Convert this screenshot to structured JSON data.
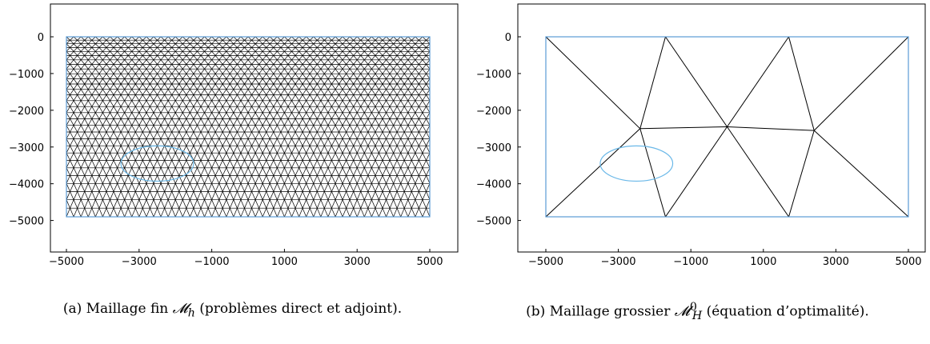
{
  "figure": {
    "panels": [
      {
        "id": "a",
        "caption_prefix": "(a) Maillage fin ",
        "caption_math": "𝓜",
        "caption_sub": "h",
        "caption_sup": "",
        "caption_suffix": " (problèmes direct et adjoint).",
        "x_ticks": [
          "-5000",
          "-3000",
          "-1000",
          "1000",
          "3000",
          "5000"
        ],
        "y_ticks": [
          "0",
          "-1000",
          "-2000",
          "-3000",
          "-4000",
          "-5000"
        ],
        "mesh": "fine"
      },
      {
        "id": "b",
        "caption_prefix": "(b) Maillage grossier ",
        "caption_math": "𝓜",
        "caption_sub": "H",
        "caption_sup": "0",
        "caption_suffix": " (équation d’optimalité).",
        "x_ticks": [
          "-5000",
          "-3000",
          "-1000",
          "1000",
          "3000",
          "5000"
        ],
        "y_ticks": [
          "0",
          "-1000",
          "-2000",
          "-3000",
          "-4000",
          "-5000"
        ],
        "mesh": "coarse"
      }
    ],
    "domain": {
      "xlim": [
        -5000,
        5000
      ],
      "ylim": [
        -4900,
        0
      ]
    },
    "inclusion": {
      "cx": -2500,
      "cy": -3450,
      "rx": 1000,
      "ry": 480
    },
    "coarse_nodes": [
      [
        -5000,
        0
      ],
      [
        -1700,
        0
      ],
      [
        1700,
        0
      ],
      [
        5000,
        0
      ],
      [
        -2400,
        -2500
      ],
      [
        0,
        -2450
      ],
      [
        2400,
        -2550
      ],
      [
        -5000,
        -4900
      ],
      [
        -1700,
        -4900
      ],
      [
        1700,
        -4900
      ],
      [
        5000,
        -4900
      ]
    ],
    "coarse_edges": [
      [
        0,
        4
      ],
      [
        1,
        4
      ],
      [
        1,
        5
      ],
      [
        2,
        5
      ],
      [
        2,
        6
      ],
      [
        3,
        6
      ],
      [
        4,
        5
      ],
      [
        5,
        6
      ],
      [
        4,
        7
      ],
      [
        4,
        8
      ],
      [
        5,
        8
      ],
      [
        5,
        9
      ],
      [
        6,
        9
      ],
      [
        6,
        10
      ]
    ],
    "colors": {
      "mesh": "#000000",
      "boundary": "#5b9bd5",
      "inclusion": "#6ab8e8",
      "frame": "#000000"
    }
  }
}
